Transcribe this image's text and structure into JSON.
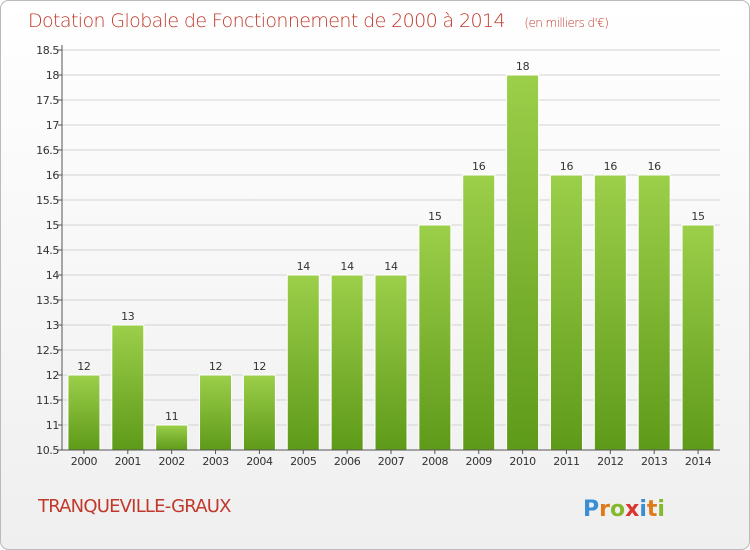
{
  "title": "Dotation Globale de Fonctionnement de 2000 à 2014",
  "subtitle": "(en milliers d'€)",
  "place": "TRANQUEVILLE-GRAUX",
  "brand": {
    "letters": [
      "P",
      "r",
      "o",
      "x",
      "i",
      "t",
      "i"
    ],
    "colors": [
      "#3a8fd4",
      "#e07b1c",
      "#84b92c",
      "#d9362f",
      "#3a8fd4",
      "#e07b1c",
      "#84b92c"
    ]
  },
  "colors": {
    "title": "#c0392b",
    "subtitle": "#c0392b",
    "place": "#c0392b",
    "bar_top": "#9ccf4a",
    "bar_bottom": "#5e9a19",
    "bar_edge": "#ffffff",
    "grid": "#d3d3d3",
    "axis": "#555555",
    "background_top": "#ffffff",
    "background_bottom": "#efefef",
    "frame": "#bbbbbb"
  },
  "chart_data": {
    "type": "bar",
    "categories": [
      "2000",
      "2001",
      "2002",
      "2003",
      "2004",
      "2005",
      "2006",
      "2007",
      "2008",
      "2009",
      "2010",
      "2011",
      "2012",
      "2013",
      "2014"
    ],
    "values": [
      12,
      13,
      11,
      12,
      12,
      14,
      14,
      14,
      15,
      16,
      18,
      16,
      16,
      16,
      15
    ],
    "data_labels": [
      "12",
      "13",
      "11",
      "12",
      "12",
      "14",
      "14",
      "14",
      "15",
      "16",
      "18",
      "16",
      "16",
      "16",
      "15"
    ],
    "y_ticks": [
      "10.5",
      "11",
      "11.5",
      "12",
      "12.5",
      "13",
      "13.5",
      "14",
      "14.5",
      "15",
      "15.5",
      "16",
      "16.5",
      "17",
      "17.5",
      "18",
      "18.5"
    ],
    "ylim": [
      10.5,
      18.5
    ],
    "grid": true,
    "title": "Dotation Globale de Fonctionnement de 2000 à 2014",
    "xlabel": "",
    "ylabel": ""
  }
}
